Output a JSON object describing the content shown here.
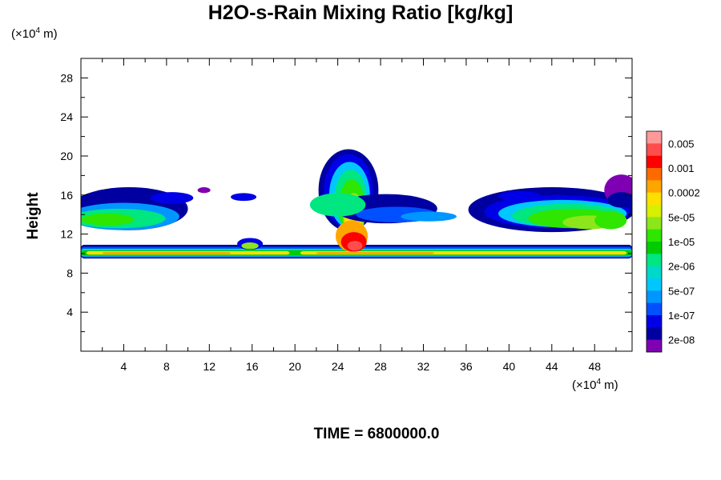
{
  "chart_data": {
    "type": "heatmap",
    "title": "H2O-s-Rain Mixing Ratio [kg/kg]",
    "xlabel": "",
    "ylabel": "Height",
    "x_unit_prefix": "(×10",
    "x_unit_exp": "4",
    "x_unit_suffix": " m)",
    "y_unit_prefix": "(×10",
    "y_unit_exp": "4",
    "y_unit_suffix": " m)",
    "xlim": [
      0,
      51.5
    ],
    "ylim": [
      0,
      30
    ],
    "x_ticks": [
      4,
      8,
      12,
      16,
      20,
      24,
      28,
      32,
      36,
      40,
      44,
      48
    ],
    "y_ticks": [
      4,
      8,
      12,
      16,
      20,
      24,
      28
    ],
    "time_label": "TIME = 6800000.0",
    "colorbar": {
      "labels": [
        "0.005",
        "0.001",
        "0.0002",
        "5e-05",
        "1e-05",
        "2e-06",
        "5e-07",
        "1e-07",
        "2e-08"
      ],
      "colors": [
        "#ff9999",
        "#ff4d4d",
        "#ff0000",
        "#ff6a00",
        "#ffa500",
        "#ffdf00",
        "#d6f000",
        "#8ce61a",
        "#2ee600",
        "#00cc00",
        "#00e680",
        "#00d9c8",
        "#00c8ff",
        "#0096ff",
        "#0050ff",
        "#0000e6",
        "#0000a0",
        "#7f00b2"
      ]
    },
    "features": [
      {
        "name": "melting-layer band",
        "x": [
          0,
          51.5
        ],
        "height": [
          9.6,
          10.8
        ],
        "peak": "1e-05 to 0.0002"
      },
      {
        "name": "central convective tower",
        "x": [
          22.5,
          27.5
        ],
        "height": [
          9.5,
          20.5
        ],
        "peak": "0.001"
      },
      {
        "name": "left upper layer",
        "x": [
          0,
          9
        ],
        "height": [
          12.5,
          16.5
        ],
        "peak": "5e-06"
      },
      {
        "name": "right upper layer",
        "x": [
          36,
          51.5
        ],
        "height": [
          11.5,
          18.5
        ],
        "peak": "5e-05"
      }
    ]
  }
}
